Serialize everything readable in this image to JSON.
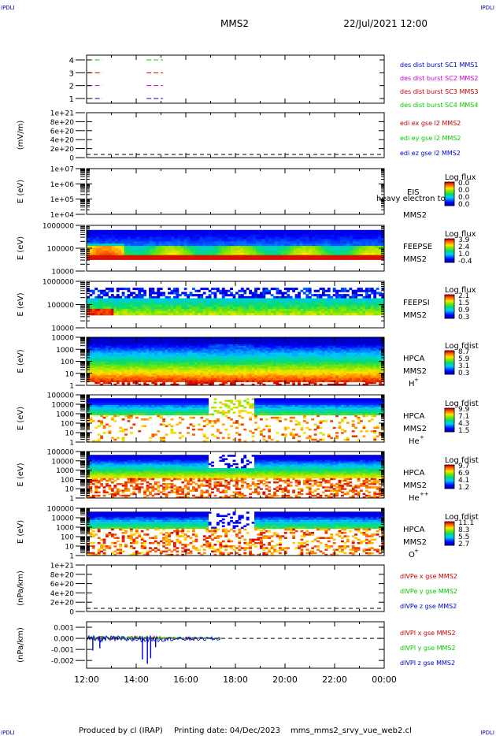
{
  "header": {
    "corner_left_top": "IPDLI",
    "corner_right_top": "IPDLI",
    "corner_left_bottom": "IPDLI",
    "corner_right_bottom": "IPDLI",
    "title": "MMS2",
    "date": "22/Jul/2021 12:00"
  },
  "footer": {
    "produced": "Produced by cl (IRAP)",
    "printing": "Printing date: 04/Dec/2023",
    "file": "mms_mms2_srvy_vue_web2.cl"
  },
  "colors": {
    "red": "#cc0000",
    "green": "#00cc00",
    "blue": "#0000cc",
    "magenta": "#cc00cc",
    "black": "#000000"
  },
  "chart_data": [
    {
      "type": "line",
      "panel": "burst",
      "ylabel": "",
      "ytick_labels": [
        "4",
        "3",
        "2",
        "1"
      ],
      "legend": [
        {
          "text": "des dist burst SC1 MMS1",
          "color": "#0000cc"
        },
        {
          "text": "des dist burst SC2 MMS2",
          "color": "#cc00cc"
        },
        {
          "text": "des dist burst SC3 MMS3",
          "color": "#cc0000"
        },
        {
          "text": "des dist burst SC4 MMS4",
          "color": "#00cc00"
        }
      ],
      "segments": [
        {
          "level": 4,
          "color": "#00cc00",
          "x": [
            [
              "12:03",
              "12:38"
            ],
            [
              "14:25",
              "15:05"
            ]
          ]
        },
        {
          "level": 3,
          "color": "#cc0000",
          "x": [
            [
              "12:03",
              "12:38"
            ],
            [
              "14:25",
              "15:05"
            ]
          ]
        },
        {
          "level": 2,
          "color": "#cc00cc",
          "x": [
            [
              "12:03",
              "12:38"
            ],
            [
              "14:25",
              "15:05"
            ]
          ]
        },
        {
          "level": 1,
          "color": "#0000cc",
          "x": [
            [
              "12:03",
              "12:38"
            ],
            [
              "14:25",
              "15:05"
            ]
          ]
        }
      ]
    },
    {
      "type": "line",
      "panel": "edi",
      "ylabel": "(mV/m)",
      "ytick_labels": [
        "1e+21",
        "8e+20",
        "6e+20",
        "4e+20",
        "2e+20",
        "0"
      ],
      "legend": [
        {
          "text": "edi ex gse l2 MMS2",
          "color": "#cc0000"
        },
        {
          "text": "edi ey gse l2 MMS2",
          "color": "#00cc00"
        },
        {
          "text": "edi ez gse l2 MMS2",
          "color": "#0000cc"
        }
      ],
      "zero_line": true
    },
    {
      "type": "heatmap",
      "panel": "eis",
      "ylabel": "E (eV)",
      "ytick_labels": [
        "1e+07",
        "1e+06",
        "1e+05",
        "1e+04"
      ],
      "instrument": "EIS",
      "overlay_text": "heavy electron to",
      "spacecraft": "MMS2",
      "colorbar_title": "Log flux",
      "colorbar_ticks": [
        "0.0",
        "0.0",
        "0.0",
        "0.0"
      ]
    },
    {
      "type": "heatmap",
      "panel": "feepse",
      "ylabel": "E (eV)",
      "ytick_labels": [
        "1000000",
        "100000",
        "10000"
      ],
      "instrument": "FEEPSE",
      "spacecraft": "MMS2",
      "colorbar_title": "Log flux",
      "colorbar_ticks": [
        "3.9",
        "2.4",
        "1.0",
        "-0.4"
      ]
    },
    {
      "type": "heatmap",
      "panel": "feepsi",
      "ylabel": "E (eV)",
      "ytick_labels": [
        "1000000",
        "100000",
        "10000"
      ],
      "instrument": "FEEPSI",
      "spacecraft": "MMS2",
      "colorbar_title": "Log flux",
      "colorbar_ticks": [
        "2.1",
        "1.5",
        "0.9",
        "0.3"
      ]
    },
    {
      "type": "heatmap",
      "panel": "hpca_h",
      "ylabel": "E (eV)",
      "ytick_labels": [
        "10000",
        "1000",
        "100",
        "10",
        "1"
      ],
      "instrument": "HPCA",
      "spacecraft": "MMS2",
      "species": "H",
      "species_sup": "+",
      "colorbar_title": "Log fdist",
      "colorbar_ticks": [
        "8.7",
        "5.9",
        "3.1",
        "0.3"
      ]
    },
    {
      "type": "heatmap",
      "panel": "hpca_he1",
      "ylabel": "E (eV)",
      "ytick_labels": [
        "100000",
        "10000",
        "1000",
        "100",
        "10",
        "1"
      ],
      "instrument": "HPCA",
      "spacecraft": "MMS2",
      "species": "He",
      "species_sup": "+",
      "colorbar_title": "Log fdist",
      "colorbar_ticks": [
        "9.9",
        "7.1",
        "4.3",
        "1.5"
      ]
    },
    {
      "type": "heatmap",
      "panel": "hpca_he2",
      "ylabel": "E (eV)",
      "ytick_labels": [
        "100000",
        "10000",
        "1000",
        "100",
        "10",
        "1"
      ],
      "instrument": "HPCA",
      "spacecraft": "MMS2",
      "species": "He",
      "species_sup": "++",
      "colorbar_title": "Log fdist",
      "colorbar_ticks": [
        "9.7",
        "6.9",
        "4.1",
        "1.2"
      ]
    },
    {
      "type": "heatmap",
      "panel": "hpca_o",
      "ylabel": "E (eV)",
      "ytick_labels": [
        "100000",
        "10000",
        "1000",
        "100",
        "10",
        "1"
      ],
      "instrument": "HPCA",
      "spacecraft": "MMS2",
      "species": "O",
      "species_sup": "+",
      "colorbar_title": "Log fdist",
      "colorbar_ticks": [
        "11.1",
        "8.3",
        "5.5",
        "2.7"
      ]
    },
    {
      "type": "line",
      "panel": "divpe",
      "ylabel": "(nPa/km)",
      "ytick_labels": [
        "1e+21",
        "8e+20",
        "6e+20",
        "4e+20",
        "2e+20",
        "0"
      ],
      "legend": [
        {
          "text": "dIVPe x gse MMS2",
          "color": "#cc0000"
        },
        {
          "text": "dIVPe y gse MMS2",
          "color": "#00cc00"
        },
        {
          "text": "dIVPe z gse MMS2",
          "color": "#0000cc"
        }
      ],
      "zero_line": true
    },
    {
      "type": "line",
      "panel": "divpi",
      "ylabel": "(nPa/km)",
      "ytick_labels": [
        "0.001",
        "0.000",
        "-0.001",
        "-0.002"
      ],
      "ylim": [
        -0.0027,
        0.0015
      ],
      "legend": [
        {
          "text": "dIVPI x gse MMS2",
          "color": "#cc0000"
        },
        {
          "text": "dIVPI y gse MMS2",
          "color": "#00cc00"
        },
        {
          "text": "dIVPI z gse MMS2",
          "color": "#0000cc"
        }
      ],
      "zero_line": true,
      "x_end": "17:25",
      "spikes_z": [
        {
          "x": "14:15",
          "y": -0.0019
        },
        {
          "x": "14:27",
          "y": -0.0023
        },
        {
          "x": "14:35",
          "y": -0.0018
        },
        {
          "x": "14:47",
          "y": -0.0008
        },
        {
          "x": "12:15",
          "y": -0.0011
        },
        {
          "x": "12:32",
          "y": -0.0009
        }
      ]
    }
  ],
  "x_axis": {
    "start": "12:00",
    "end": "00:00",
    "tick_labels": [
      "12:00",
      "14:00",
      "16:00",
      "18:00",
      "20:00",
      "22:00",
      "00:00"
    ]
  }
}
